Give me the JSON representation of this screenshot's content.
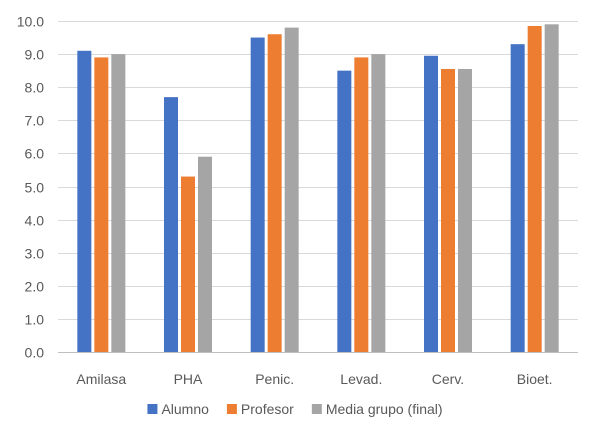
{
  "chart_data": {
    "type": "bar",
    "title": "",
    "xlabel": "",
    "ylabel": "",
    "ylim": [
      0,
      10
    ],
    "y_ticks": [
      "0.0",
      "1.0",
      "2.0",
      "3.0",
      "4.0",
      "5.0",
      "6.0",
      "7.0",
      "8.0",
      "9.0",
      "10.0"
    ],
    "grid": true,
    "legend_position": "bottom",
    "categories": [
      "Amilasa",
      "PHA",
      "Penic.",
      "Levad.",
      "Cerv.",
      "Bioet."
    ],
    "series": [
      {
        "name": "Alumno",
        "color": "#4472c4",
        "values": [
          9.1,
          7.7,
          9.5,
          8.5,
          8.95,
          9.3
        ]
      },
      {
        "name": "Profesor",
        "color": "#ed7d31",
        "values": [
          8.9,
          5.3,
          9.6,
          8.9,
          8.55,
          9.85
        ]
      },
      {
        "name": "Media grupo (final)",
        "color": "#a5a5a5",
        "values": [
          9.0,
          5.9,
          9.8,
          9.0,
          8.55,
          9.9
        ]
      }
    ]
  }
}
